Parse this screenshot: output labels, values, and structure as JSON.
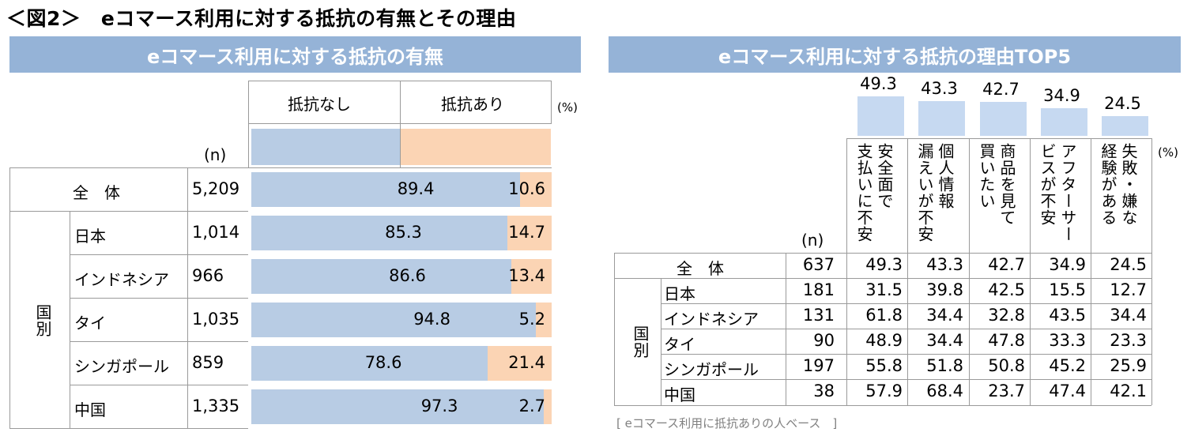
{
  "page_title": "＜図2＞　eコマース利用に対する抵抗の有無とその理由",
  "left": {
    "band_title": "eコマース利用に対する抵抗の有無",
    "col_none": "抵抗なし",
    "col_yes": "抵抗あり",
    "unit": "(%)",
    "n_header": "(n)",
    "total_label": "全　体",
    "group_label": "国別",
    "rows": [
      {
        "label": "全　体",
        "n": "5,209",
        "none": 89.4,
        "yes": 10.6,
        "none_label": "89.4",
        "yes_label": "10.6"
      },
      {
        "label": "日本",
        "n": "1,014",
        "none": 85.3,
        "yes": 14.7,
        "none_label": "85.3",
        "yes_label": "14.7"
      },
      {
        "label": "インドネシア",
        "n": "966",
        "none": 86.6,
        "yes": 13.4,
        "none_label": "86.6",
        "yes_label": "13.4"
      },
      {
        "label": "タイ",
        "n": "1,035",
        "none": 94.8,
        "yes": 5.2,
        "none_label": "94.8",
        "yes_label": "5.2"
      },
      {
        "label": "シンガポール",
        "n": "859",
        "none": 78.6,
        "yes": 21.4,
        "none_label": "78.6",
        "yes_label": "21.4"
      },
      {
        "label": "中国",
        "n": "1,335",
        "none": 97.3,
        "yes": 2.7,
        "none_label": "97.3",
        "yes_label": "2.7"
      }
    ],
    "colors": {
      "none": "#b8cce4",
      "yes": "#fbd4b4"
    }
  },
  "right": {
    "band_title": "eコマース利用に対する抵抗の理由TOP5",
    "unit": "(%)",
    "n_header": "(n)",
    "total_label": "全　体",
    "group_label": "国別",
    "reasons": [
      {
        "label": "安全面で支払いに不安",
        "total_label": "49.3"
      },
      {
        "label": "個人情報漏えいが不安",
        "total_label": "43.3"
      },
      {
        "label": "商品を見て買いたい",
        "total_label": "42.7"
      },
      {
        "label": "アフターサービスが不安",
        "total_label": "34.9"
      },
      {
        "label": "失敗・嫌な経験がある",
        "total_label": "24.5"
      }
    ],
    "header_lines": [
      [
        "支払いに不安",
        "安全面で"
      ],
      [
        "漏えいが不安",
        "個人情報"
      ],
      [
        "買いたい",
        "商品を見て"
      ],
      [
        "ビスが不安",
        "アフターサー"
      ],
      [
        "経験がある",
        "失敗・嫌な"
      ]
    ],
    "rows": [
      {
        "label": "全　体",
        "n": "637",
        "values": [
          "49.3",
          "43.3",
          "42.7",
          "34.9",
          "24.5"
        ]
      },
      {
        "label": "日本",
        "n": "181",
        "values": [
          "31.5",
          "39.8",
          "42.5",
          "15.5",
          "12.7"
        ]
      },
      {
        "label": "インドネシア",
        "n": "131",
        "values": [
          "61.8",
          "34.4",
          "32.8",
          "43.5",
          "34.4"
        ]
      },
      {
        "label": "タイ",
        "n": "90",
        "values": [
          "48.9",
          "34.4",
          "47.8",
          "33.3",
          "23.3"
        ]
      },
      {
        "label": "シンガポール",
        "n": "197",
        "values": [
          "55.8",
          "51.8",
          "50.8",
          "45.2",
          "25.9"
        ]
      },
      {
        "label": "中国",
        "n": "38",
        "values": [
          "57.9",
          "68.4",
          "23.7",
          "47.4",
          "42.1"
        ]
      }
    ],
    "note": "[ eコマース利用に抵抗ありの人ベース　]",
    "colors": {
      "bar": "#c6d9f1"
    }
  },
  "chart_data": [
    {
      "type": "bar",
      "title": "eコマース利用に対する抵抗の有無",
      "categories": [
        "全　体",
        "日本",
        "インドネシア",
        "タイ",
        "シンガポール",
        "中国"
      ],
      "series": [
        {
          "name": "抵抗なし",
          "values": [
            89.4,
            85.3,
            86.6,
            94.8,
            78.6,
            97.3
          ]
        },
        {
          "name": "抵抗あり",
          "values": [
            10.6,
            14.7,
            13.4,
            5.2,
            21.4,
            2.7
          ]
        }
      ],
      "xlim": [
        0,
        100
      ],
      "stacked": true
    },
    {
      "type": "bar",
      "title": "eコマース利用に対する抵抗の理由TOP5",
      "categories": [
        "安全面で支払いに不安",
        "個人情報漏えいが不安",
        "商品を見て買いたい",
        "アフターサービスが不安",
        "失敗・嫌な経験がある"
      ],
      "values": [
        49.3,
        43.3,
        42.7,
        34.9,
        24.5
      ]
    }
  ]
}
